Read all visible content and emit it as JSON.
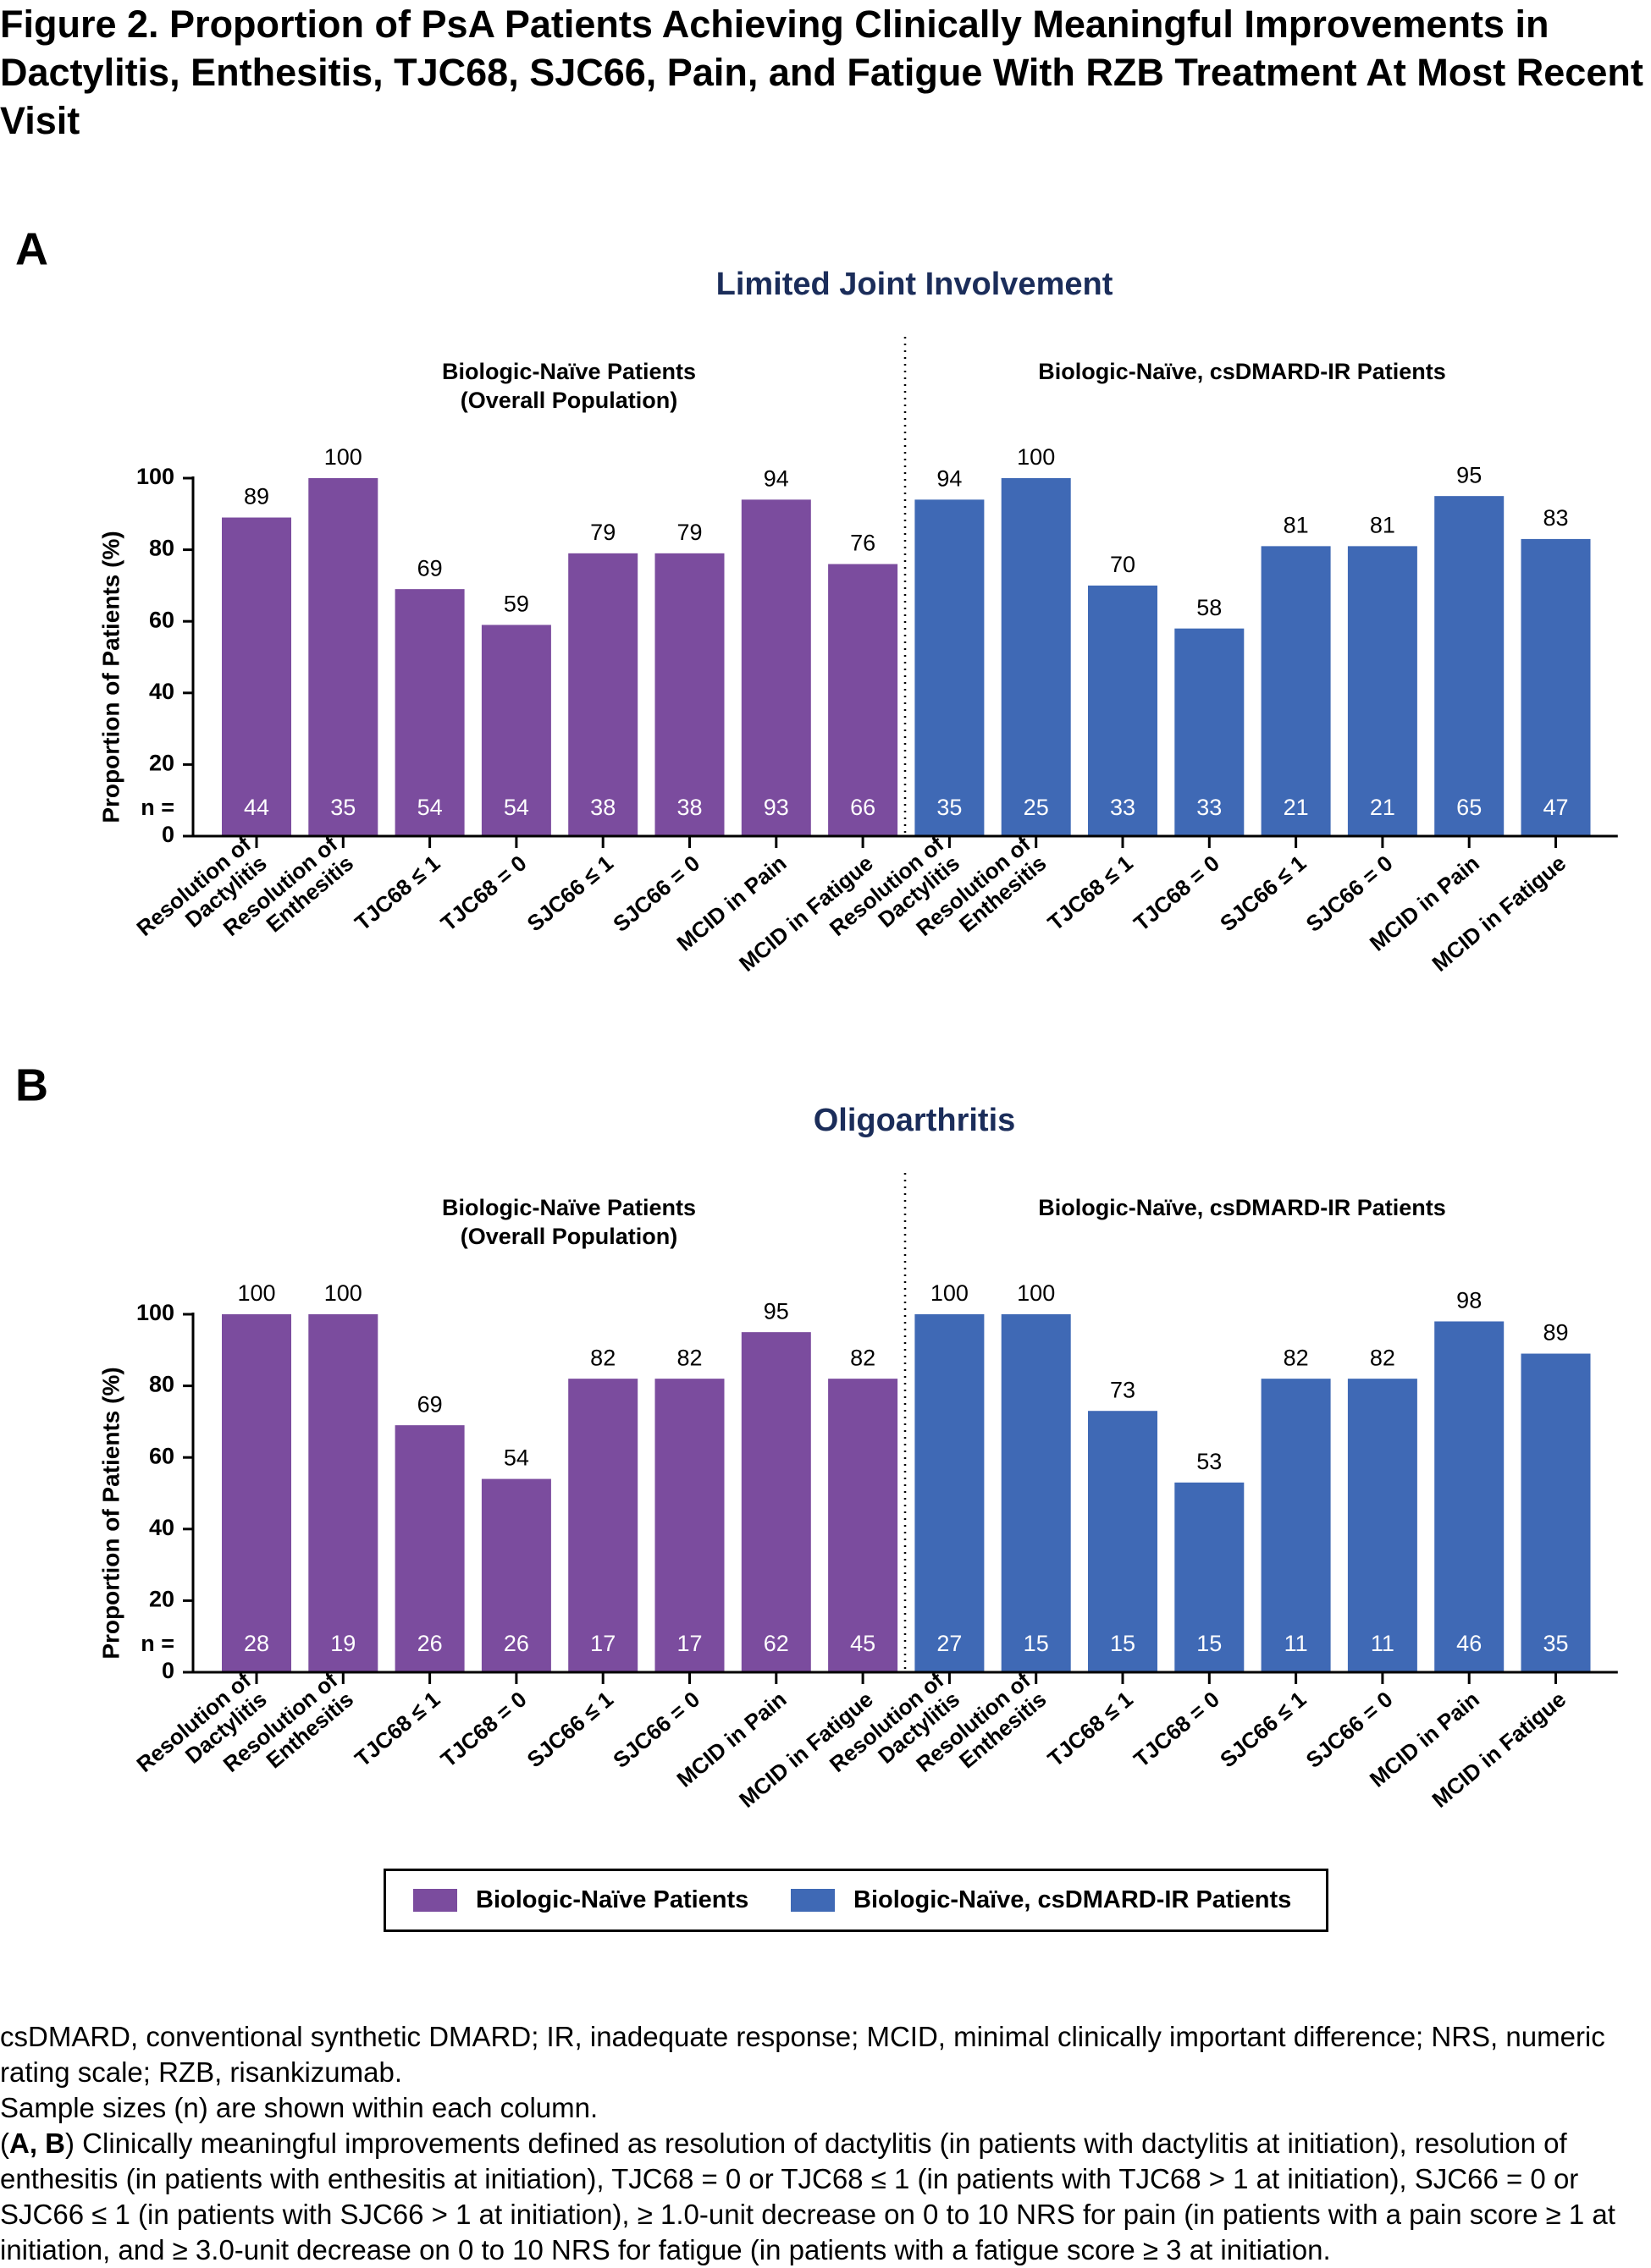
{
  "figure_title": "Figure 2. Proportion of PsA Patients Achieving Clinically Meaningful Improvements in Dactylitis, Enthesitis, TJC68, SJC66, Pain, and Fatigue With RZB Treatment At Most Recent Visit",
  "colors": {
    "biologic_naive": "#7b4c9e",
    "csdmard_ir": "#3f69b5",
    "title_navy": "#1b2d5a"
  },
  "legend": [
    {
      "label": "Biologic-Naïve Patients",
      "color": "#7b4c9e"
    },
    {
      "label": "Biologic-Naïve, csDMARD-IR Patients",
      "color": "#3f69b5"
    }
  ],
  "chart_data": [
    {
      "type": "bar",
      "panel_letter": "A",
      "title": "Limited Joint Involvement",
      "ylabel": "Proportion of Patients (%)",
      "ylim": [
        0,
        100
      ],
      "yticks": [
        0,
        20,
        40,
        60,
        80,
        100
      ],
      "n_label": "n =",
      "groups": [
        {
          "title_lines": [
            "Biologic-Naïve Patients",
            "(Overall Population)"
          ],
          "color": "#7b4c9e",
          "categories": [
            "Resolution of Dactylitis",
            "Resolution of Enthesitis",
            "TJC68 ≤ 1",
            "TJC68 = 0",
            "SJC66 ≤ 1",
            "SJC66 = 0",
            "MCID in Pain",
            "MCID in Fatigue"
          ],
          "values": [
            89,
            100,
            69,
            59,
            79,
            79,
            94,
            76
          ],
          "n": [
            44,
            35,
            54,
            54,
            38,
            38,
            93,
            66
          ]
        },
        {
          "title_lines": [
            "Biologic-Naïve, csDMARD-IR Patients"
          ],
          "color": "#3f69b5",
          "categories": [
            "Resolution of Dactylitis",
            "Resolution of Enthesitis",
            "TJC68 ≤ 1",
            "TJC68 = 0",
            "SJC66 ≤ 1",
            "SJC66 = 0",
            "MCID in Pain",
            "MCID in Fatigue"
          ],
          "values": [
            94,
            100,
            70,
            58,
            81,
            81,
            95,
            83
          ],
          "n": [
            35,
            25,
            33,
            33,
            21,
            21,
            65,
            47
          ]
        }
      ]
    },
    {
      "type": "bar",
      "panel_letter": "B",
      "title": "Oligoarthritis",
      "ylabel": "Proportion of Patients (%)",
      "ylim": [
        0,
        100
      ],
      "yticks": [
        0,
        20,
        40,
        60,
        80,
        100
      ],
      "ytick_labels": [
        "0",
        "20",
        "40",
        "60",
        "80",
        "100"
      ],
      "n_label": "n =",
      "groups": [
        {
          "title_lines": [
            "Biologic-Naïve Patients",
            "(Overall Population)"
          ],
          "color": "#7b4c9e",
          "categories": [
            "Resolution of Dactylitis",
            "Resolution of Enthesitis",
            "TJC68 ≤ 1",
            "TJC68 = 0",
            "SJC66 ≤ 1",
            "SJC66 = 0",
            "MCID in Pain",
            "MCID in Fatigue"
          ],
          "values": [
            100,
            100,
            69,
            54,
            82,
            82,
            95,
            82
          ],
          "n": [
            28,
            19,
            26,
            26,
            17,
            17,
            62,
            45
          ]
        },
        {
          "title_lines": [
            "Biologic-Naïve, csDMARD-IR Patients"
          ],
          "color": "#3f69b5",
          "categories": [
            "Resolution of Dactylitis",
            "Resolution of Enthesitis",
            "TJC68 ≤ 1",
            "TJC68 = 0",
            "SJC66 ≤ 1",
            "SJC66 = 0",
            "MCID in Pain",
            "MCID in Fatigue"
          ],
          "values": [
            100,
            100,
            73,
            53,
            82,
            82,
            98,
            89
          ],
          "n": [
            27,
            15,
            15,
            15,
            11,
            11,
            46,
            35
          ]
        }
      ]
    }
  ],
  "footnotes": [
    "csDMARD, conventional synthetic DMARD; IR, inadequate response; MCID, minimal clinically important difference; NRS, numeric rating scale; RZB, risankizumab.",
    "Sample sizes (n) are shown within each column.",
    {
      "bold": "A, B",
      "text": "Clinically meaningful improvements defined as resolution of dactylitis (in patients with dactylitis at initiation), resolution of enthesitis (in patients with enthesitis at initiation), TJC68 = 0 or TJC68 ≤ 1 (in patients with TJC68 > 1 at initiation), SJC66 = 0 or SJC66 ≤ 1 (in patients with SJC66 > 1 at initiation), ≥ 1.0-unit decrease on 0 to 10 NRS for pain (in patients with a pain score ≥ 1 at initiation, and ≥ 3.0-unit decrease on 0 to 10 NRS for fatigue (in patients with a fatigue score ≥ 3 at initiation."
    }
  ]
}
